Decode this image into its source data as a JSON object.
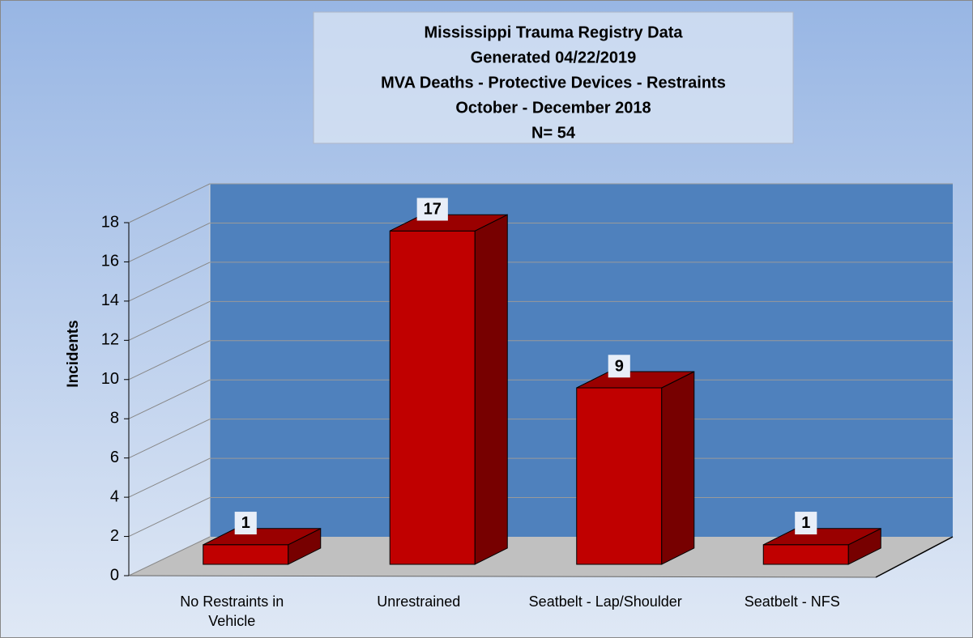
{
  "chart_data": {
    "type": "bar3d",
    "title": [
      "Mississippi Trauma Registry Data",
      "Generated  04/22/2019",
      "MVA Deaths - Protective Devices - Restraints",
      "October - December 2018",
      "N= 54"
    ],
    "y_label": "Incidents",
    "categories": [
      "No Restraints in Vehicle",
      "Unrestrained",
      "Seatbelt - Lap/Shoulder",
      "Seatbelt - NFS"
    ],
    "values": [
      1,
      17,
      9,
      1
    ],
    "color": "#c00000",
    "ylim": [
      0,
      18
    ],
    "yticks": [
      0,
      2,
      4,
      6,
      8,
      10,
      12,
      14,
      16,
      18
    ],
    "grid": true
  }
}
